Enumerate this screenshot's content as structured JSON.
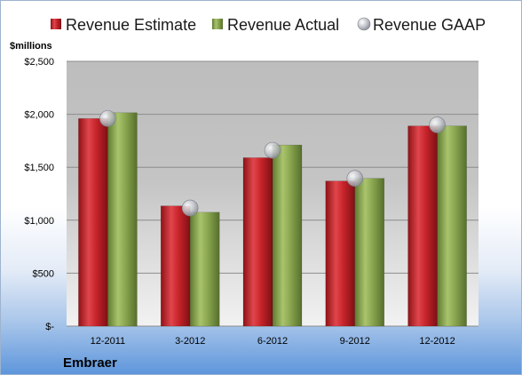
{
  "chart_data": {
    "type": "bar",
    "title": "",
    "company": "Embraer",
    "unit_label": "$millions",
    "categories": [
      "12-2011",
      "3-2012",
      "6-2012",
      "9-2012",
      "12-2012"
    ],
    "y_ticks": [
      0,
      500,
      1000,
      1500,
      2000,
      2500
    ],
    "y_tick_labels": [
      "$-",
      "$500",
      "$1,000",
      "$1,500",
      "$2,000",
      "$2,500"
    ],
    "ylim": [
      0,
      2500
    ],
    "grid": true,
    "legend_position": "top",
    "series": [
      {
        "name": "Revenue Estimate",
        "kind": "bar",
        "color": "#c8242b",
        "values": [
          1960,
          1135,
          1590,
          1370,
          1890
        ]
      },
      {
        "name": "Revenue Actual",
        "kind": "bar",
        "color": "#8aa650",
        "values": [
          2015,
          1075,
          1710,
          1395,
          1890
        ]
      },
      {
        "name": "Revenue GAAP",
        "kind": "marker",
        "color": "#b8bcc4",
        "values": [
          1960,
          1115,
          1660,
          1395,
          1900
        ]
      }
    ]
  }
}
